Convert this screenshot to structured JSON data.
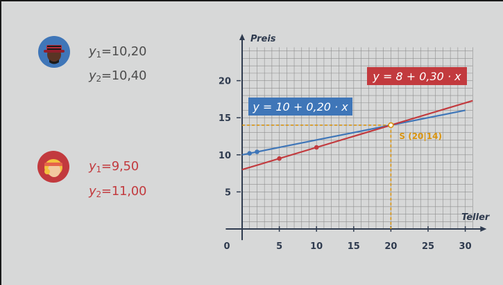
{
  "people": [
    {
      "avatar": "man-with-hat-avatar",
      "color": "#3f76b8",
      "equations": [
        {
          "var": "y",
          "sub": "1",
          "value": "10,20"
        },
        {
          "var": "y",
          "sub": "2",
          "value": "10,40"
        }
      ]
    },
    {
      "avatar": "woman-with-headband-avatar",
      "color": "#c23a3e",
      "equations": [
        {
          "var": "y",
          "sub": "1",
          "value": "9,50"
        },
        {
          "var": "y",
          "sub": "2",
          "value": "11,00"
        }
      ]
    }
  ],
  "chart_data": {
    "type": "line",
    "xlabel": "Teller",
    "ylabel": "Preis",
    "xlim": [
      0,
      31
    ],
    "ylim": [
      0,
      25
    ],
    "x_ticks": [
      0,
      5,
      10,
      15,
      20,
      25,
      30
    ],
    "y_ticks": [
      5,
      10,
      15,
      20
    ],
    "grid": true,
    "series": [
      {
        "name": "y = 10 + 0,20 · x",
        "color": "#3f76b8",
        "intercept": 10,
        "slope": 0.2,
        "x_range": [
          0,
          30
        ],
        "points": [
          [
            1,
            10.2
          ],
          [
            2,
            10.4
          ]
        ]
      },
      {
        "name": "y = 8 + 0,30 · x",
        "color": "#c23a3e",
        "intercept": 8,
        "slope": 0.3,
        "x_range": [
          0,
          31
        ],
        "points": [
          [
            5,
            9.5
          ],
          [
            10,
            11.0
          ]
        ]
      }
    ],
    "intersection": {
      "x": 20,
      "y": 14,
      "label": "S (20|14)",
      "color": "#d9940f"
    }
  }
}
